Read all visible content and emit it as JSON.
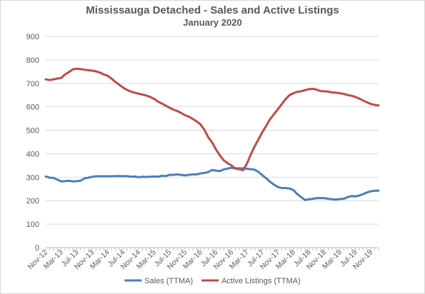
{
  "chart_data": {
    "type": "line",
    "title": "Mississauga Detached - Sales and Active Listings",
    "subtitle": "January 2020",
    "xlabel": "",
    "ylabel": "",
    "ylim": [
      0,
      900
    ],
    "yticks": [
      0,
      100,
      200,
      300,
      400,
      500,
      600,
      700,
      800,
      900
    ],
    "grid": true,
    "legend": "bottom",
    "categories": [
      "Nov-12",
      "Dec-12",
      "Jan-13",
      "Feb-13",
      "Mar-13",
      "Apr-13",
      "May-13",
      "Jun-13",
      "Jul-13",
      "Aug-13",
      "Sep-13",
      "Oct-13",
      "Nov-13",
      "Dec-13",
      "Jan-14",
      "Feb-14",
      "Mar-14",
      "Apr-14",
      "May-14",
      "Jun-14",
      "Jul-14",
      "Aug-14",
      "Sep-14",
      "Oct-14",
      "Nov-14",
      "Dec-14",
      "Jan-15",
      "Feb-15",
      "Mar-15",
      "Apr-15",
      "May-15",
      "Jun-15",
      "Jul-15",
      "Aug-15",
      "Sep-15",
      "Oct-15",
      "Nov-15",
      "Dec-15",
      "Jan-16",
      "Feb-16",
      "Mar-16",
      "Apr-16",
      "May-16",
      "Jun-16",
      "Jul-16",
      "Aug-16",
      "Sep-16",
      "Oct-16",
      "Nov-16",
      "Dec-16",
      "Jan-17",
      "Feb-17",
      "Mar-17",
      "Apr-17",
      "May-17",
      "Jun-17",
      "Jul-17",
      "Aug-17",
      "Sep-17",
      "Oct-17",
      "Nov-17",
      "Dec-17",
      "Jan-18",
      "Feb-18",
      "Mar-18",
      "Apr-18",
      "May-18",
      "Jun-18",
      "Jul-18",
      "Aug-18",
      "Sep-18",
      "Oct-18",
      "Nov-18",
      "Dec-18",
      "Jan-19",
      "Feb-19",
      "Mar-19",
      "Apr-19",
      "May-19",
      "Jun-19",
      "Jul-19",
      "Aug-19",
      "Sep-19",
      "Oct-19",
      "Nov-19",
      "Dec-19",
      "Jan-20"
    ],
    "xtick_labels": [
      "Nov-12",
      "Mar-13",
      "Jul-13",
      "Nov-13",
      "Mar-14",
      "Jul-14",
      "Nov-14",
      "Mar-15",
      "Jul-15",
      "Nov-15",
      "Mar-16",
      "Jul-16",
      "Nov-16",
      "Mar-17",
      "Jul-17",
      "Nov-17",
      "Mar-18",
      "Jul-18",
      "Nov-18",
      "Mar-19",
      "Jul-19",
      "Nov-19"
    ],
    "series": [
      {
        "name": "Sales (TTMA)",
        "color": "#4a7ebb",
        "values": [
          303,
          298,
          297,
          290,
          282,
          283,
          285,
          282,
          283,
          285,
          295,
          298,
          302,
          304,
          304,
          304,
          304,
          304,
          305,
          305,
          304,
          305,
          302,
          303,
          300,
          302,
          301,
          302,
          303,
          302,
          306,
          305,
          310,
          310,
          312,
          310,
          308,
          310,
          312,
          312,
          316,
          318,
          322,
          331,
          328,
          326,
          333,
          337,
          340,
          338,
          338,
          338,
          336,
          334,
          332,
          322,
          308,
          295,
          280,
          268,
          258,
          254,
          254,
          252,
          245,
          228,
          215,
          203,
          206,
          208,
          211,
          211,
          211,
          208,
          206,
          205,
          207,
          208,
          215,
          220,
          218,
          222,
          228,
          235,
          240,
          242,
          243
        ]
      },
      {
        "name": "Active Listings (TTMA)",
        "color": "#be4b48",
        "values": [
          717,
          714,
          717,
          720,
          723,
          738,
          748,
          760,
          762,
          761,
          758,
          756,
          754,
          751,
          746,
          738,
          732,
          720,
          706,
          694,
          682,
          672,
          665,
          660,
          656,
          652,
          648,
          642,
          634,
          622,
          614,
          605,
          596,
          588,
          582,
          574,
          564,
          558,
          548,
          538,
          525,
          502,
          470,
          448,
          418,
          393,
          372,
          360,
          350,
          337,
          334,
          330,
          358,
          398,
          432,
          462,
          493,
          520,
          548,
          569,
          590,
          612,
          633,
          650,
          658,
          664,
          666,
          671,
          675,
          677,
          673,
          667,
          666,
          665,
          661,
          660,
          658,
          655,
          650,
          647,
          642,
          635,
          627,
          619,
          612,
          608,
          606
        ]
      }
    ]
  }
}
